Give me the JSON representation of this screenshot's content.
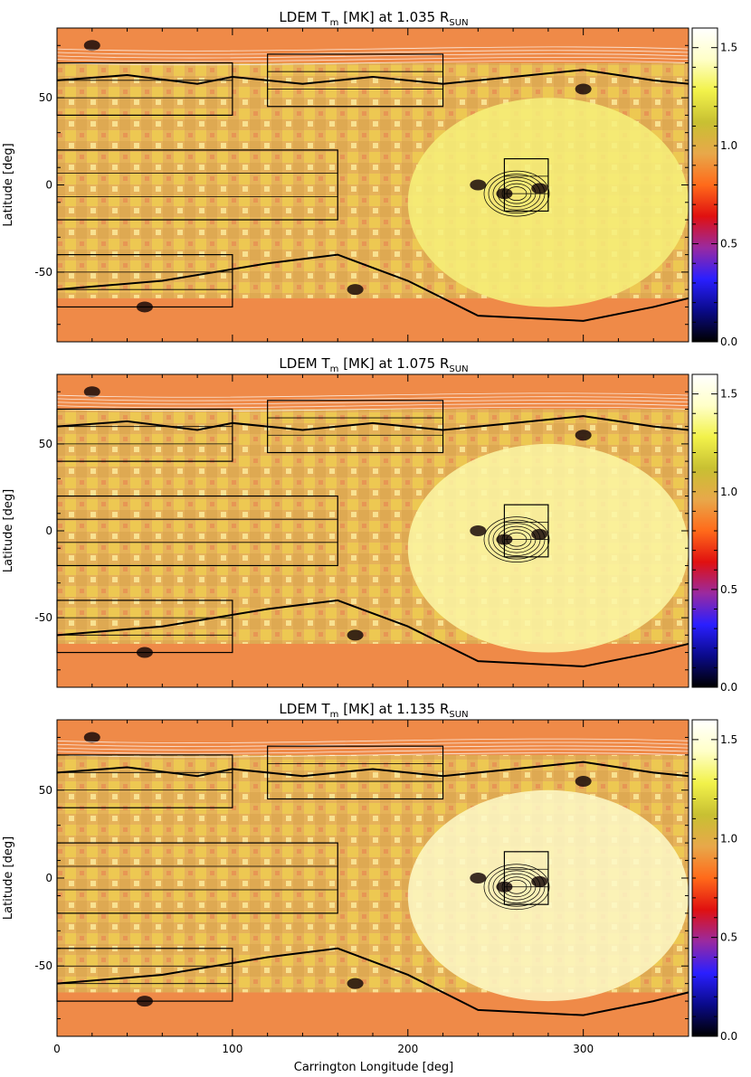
{
  "figure": {
    "xlabel": "Carrington Longitude [deg]",
    "ylabel": "Latitude [deg]",
    "colormap_colors": [
      "#000000",
      "#0a0a8a",
      "#2a1fff",
      "#9a2aa0",
      "#e01010",
      "#ff6a1a",
      "#e8a84a",
      "#c8c032",
      "#f2f24a",
      "#ffffc8",
      "#ffffff"
    ],
    "map_base_color": "#e8a070",
    "contour_color_black": "#000000",
    "contour_color_white": "#ffffff"
  },
  "chart_data": [
    {
      "type": "heatmap",
      "title_main": "LDEM T",
      "title_sub": "m",
      "title_unit": " [MK]   at   1.035 R",
      "title_rsub": "SUN",
      "xlim": [
        0,
        360
      ],
      "ylim": [
        -90,
        90
      ],
      "xticks": [
        "0",
        "100",
        "200",
        "300"
      ],
      "xtick_values": [
        0,
        100,
        200,
        300
      ],
      "yticks": [
        "50",
        "0",
        "-50"
      ],
      "ytick_values": [
        50,
        0,
        -50
      ],
      "colorbar": {
        "range": [
          0.0,
          1.6
        ],
        "ticks": [
          "1.5",
          "1.0",
          "0.5",
          "0.0"
        ],
        "tick_values": [
          1.5,
          1.0,
          0.5,
          0.0
        ]
      },
      "boxes": [
        {
          "lon": [
            0,
            100
          ],
          "lat": [
            40,
            70
          ]
        },
        {
          "lon": [
            120,
            220
          ],
          "lat": [
            45,
            75
          ]
        },
        {
          "lon": [
            0,
            160
          ],
          "lat": [
            -20,
            20
          ]
        },
        {
          "lon": [
            0,
            100
          ],
          "lat": [
            -70,
            -40
          ]
        },
        {
          "lon": [
            255,
            280
          ],
          "lat": [
            -15,
            15
          ]
        }
      ]
    },
    {
      "type": "heatmap",
      "title_main": "LDEM T",
      "title_sub": "m",
      "title_unit": " [MK]   at   1.075 R",
      "title_rsub": "SUN",
      "xlim": [
        0,
        360
      ],
      "ylim": [
        -90,
        90
      ],
      "xticks": [
        "0",
        "100",
        "200",
        "300"
      ],
      "xtick_values": [
        0,
        100,
        200,
        300
      ],
      "yticks": [
        "50",
        "0",
        "-50"
      ],
      "ytick_values": [
        50,
        0,
        -50
      ],
      "colorbar": {
        "range": [
          0.0,
          1.6
        ],
        "ticks": [
          "1.5",
          "1.0",
          "0.5",
          "0.0"
        ],
        "tick_values": [
          1.5,
          1.0,
          0.5,
          0.0
        ]
      },
      "boxes": [
        {
          "lon": [
            0,
            100
          ],
          "lat": [
            40,
            70
          ]
        },
        {
          "lon": [
            120,
            220
          ],
          "lat": [
            45,
            75
          ]
        },
        {
          "lon": [
            0,
            160
          ],
          "lat": [
            -20,
            20
          ]
        },
        {
          "lon": [
            0,
            100
          ],
          "lat": [
            -70,
            -40
          ]
        },
        {
          "lon": [
            255,
            280
          ],
          "lat": [
            -15,
            15
          ]
        }
      ]
    },
    {
      "type": "heatmap",
      "title_main": "LDEM T",
      "title_sub": "m",
      "title_unit": " [MK]   at   1.135 R",
      "title_rsub": "SUN",
      "xlim": [
        0,
        360
      ],
      "ylim": [
        -90,
        90
      ],
      "xticks": [
        "0",
        "100",
        "200",
        "300"
      ],
      "xtick_values": [
        0,
        100,
        200,
        300
      ],
      "yticks": [
        "50",
        "0",
        "-50"
      ],
      "ytick_values": [
        50,
        0,
        -50
      ],
      "colorbar": {
        "range": [
          0.0,
          1.6
        ],
        "ticks": [
          "1.5",
          "1.0",
          "0.5",
          "0.0"
        ],
        "tick_values": [
          1.5,
          1.0,
          0.5,
          0.0
        ]
      },
      "boxes": [
        {
          "lon": [
            0,
            100
          ],
          "lat": [
            40,
            70
          ]
        },
        {
          "lon": [
            120,
            220
          ],
          "lat": [
            45,
            75
          ]
        },
        {
          "lon": [
            0,
            160
          ],
          "lat": [
            -20,
            20
          ]
        },
        {
          "lon": [
            0,
            100
          ],
          "lat": [
            -70,
            -40
          ]
        },
        {
          "lon": [
            255,
            280
          ],
          "lat": [
            -15,
            15
          ]
        }
      ]
    }
  ],
  "bottom_xticks": [
    "0",
    "100",
    "200",
    "300"
  ]
}
